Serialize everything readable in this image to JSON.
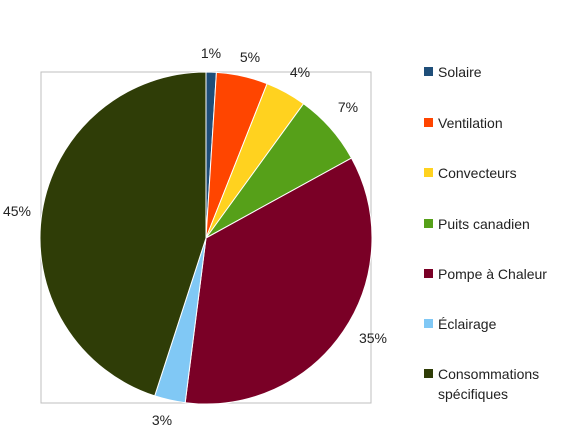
{
  "chart_data": {
    "type": "pie",
    "categories": [
      "Solaire",
      "Ventilation",
      "Convecteurs",
      "Puits canadien",
      "Pompe à Chaleur",
      "Éclairage",
      "Consommations spécifiques"
    ],
    "values": [
      1,
      5,
      4,
      7,
      35,
      3,
      45
    ],
    "data_labels": [
      "1%",
      "5%",
      "4%",
      "7%",
      "35%",
      "3%",
      "45%"
    ],
    "colors": [
      "#1f4e79",
      "#ff4500",
      "#ffd21f",
      "#56a019",
      "#7a0026",
      "#80c8f5",
      "#2f3d07"
    ],
    "start_angle": "12 o'clock, clockwise",
    "legend": "right"
  }
}
